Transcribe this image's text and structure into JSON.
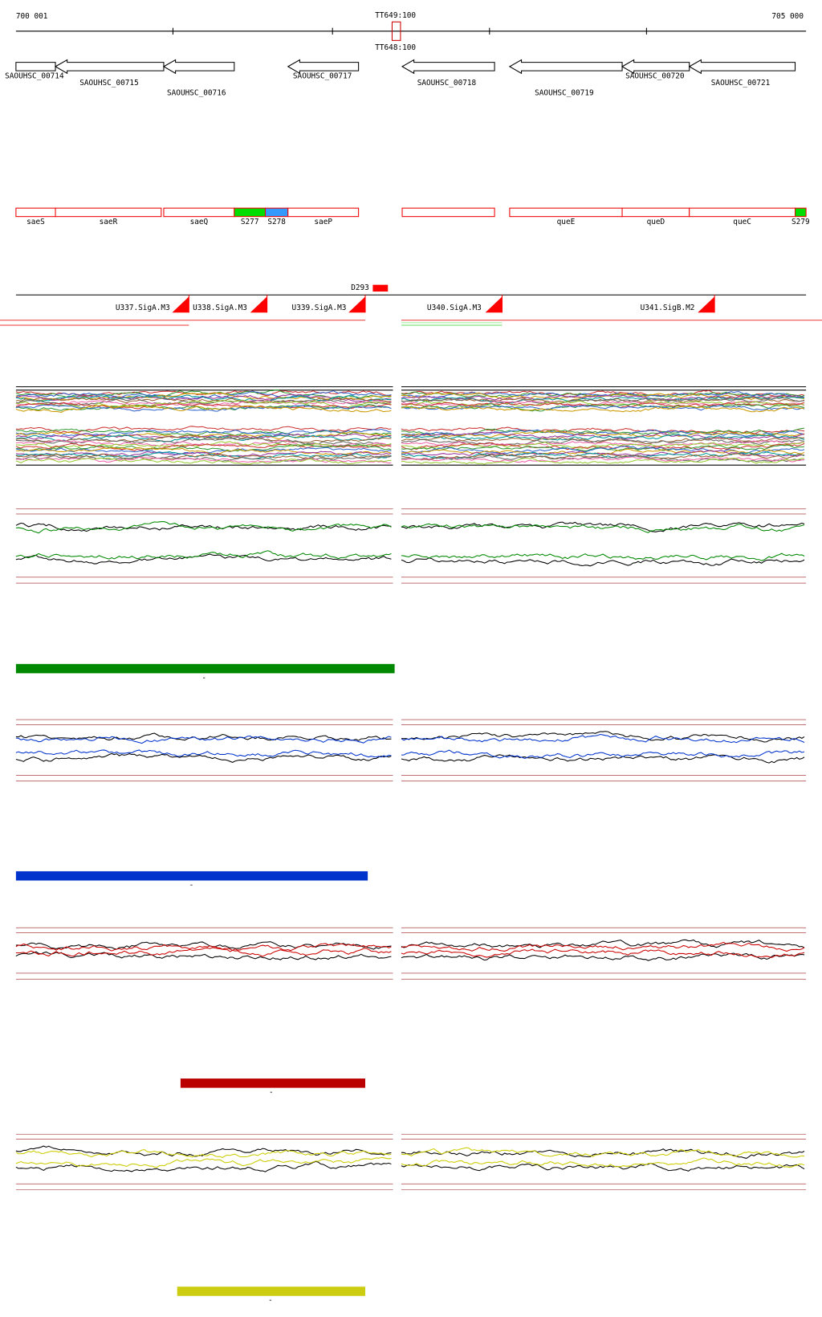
{
  "ruler": {
    "start": "700 001",
    "end": "705 000",
    "markers": [
      "TT649:100",
      "TT648:100"
    ]
  },
  "genes": [
    "SAOUHSC_00714",
    "SAOUHSC_00715",
    "SAOUHSC_00716",
    "SAOUHSC_00717",
    "SAOUHSC_00718",
    "SAOUHSC_00719",
    "SAOUHSC_00720",
    "SAOUHSC_00721"
  ],
  "operons": [
    "saeS",
    "saeR",
    "saeQ",
    "S277",
    "S278",
    "saeP",
    "queE",
    "queD",
    "queC",
    "S279"
  ],
  "terminators": [
    "D293"
  ],
  "promoters": [
    "U337.SigA.M3",
    "U338.SigA.M3",
    "U339.SigA.M3",
    "U340.SigA.M3",
    "U341.SigB.M2"
  ],
  "tracks": [
    "-",
    "-",
    "-",
    "-"
  ]
}
